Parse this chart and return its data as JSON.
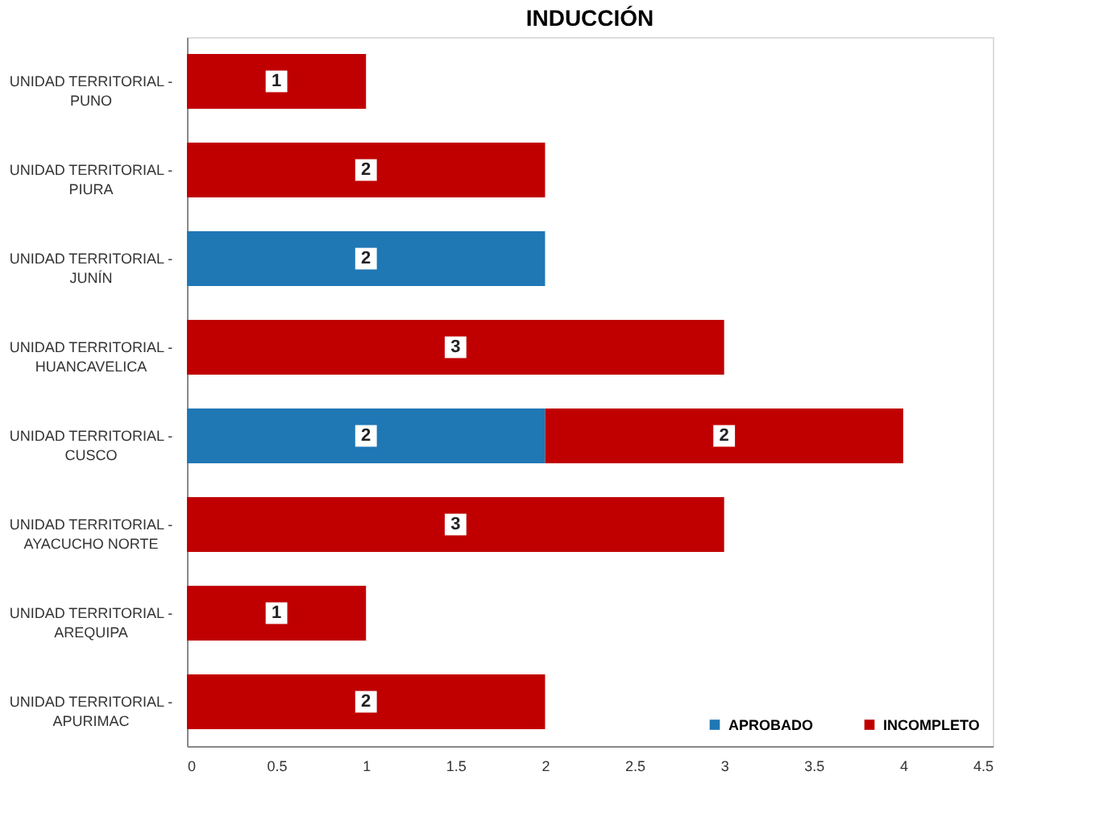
{
  "chart_data": {
    "type": "bar",
    "orientation": "horizontal",
    "stacked": true,
    "title": "INDUCCIÓN",
    "categories": [
      "UNIDAD TERRITORIAL - PUNO",
      "UNIDAD TERRITORIAL - PIURA",
      "UNIDAD TERRITORIAL - JUNÍN",
      "UNIDAD TERRITORIAL - HUANCAVELICA",
      "UNIDAD TERRITORIAL - CUSCO",
      "UNIDAD TERRITORIAL - AYACUCHO NORTE",
      "UNIDAD TERRITORIAL - AREQUIPA",
      "UNIDAD TERRITORIAL - APURIMAC"
    ],
    "series": [
      {
        "name": "APROBADO",
        "color": "#1f77b4",
        "values": [
          null,
          null,
          2,
          null,
          2,
          null,
          null,
          null
        ]
      },
      {
        "name": "INCOMPLETO",
        "color": "#c00000",
        "values": [
          1,
          2,
          null,
          3,
          2,
          3,
          1,
          2
        ]
      }
    ],
    "xlim": [
      0,
      4.5
    ],
    "xticks": [
      0,
      0.5,
      1,
      1.5,
      2,
      2.5,
      3,
      3.5,
      4,
      4.5
    ],
    "data_labels": true,
    "grid": false,
    "legend": "bottom right"
  }
}
